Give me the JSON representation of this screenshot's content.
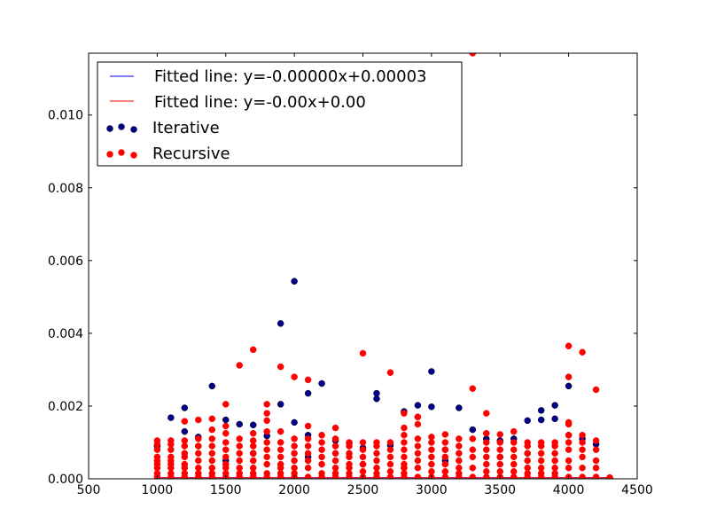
{
  "chart_data": {
    "type": "scatter",
    "xlim": [
      500,
      4500
    ],
    "ylim": [
      0,
      0.0117
    ],
    "x_ticks": [
      500,
      1000,
      1500,
      2000,
      2500,
      3000,
      3500,
      4000,
      4500
    ],
    "y_ticks": [
      0.0,
      0.002,
      0.004,
      0.006,
      0.008,
      0.01
    ],
    "x_tick_labels": [
      "500",
      "1000",
      "1500",
      "2000",
      "2500",
      "3000",
      "3500",
      "4000",
      "4500"
    ],
    "y_tick_labels": [
      "0.000",
      "0.002",
      "0.004",
      "0.006",
      "0.008",
      "0.010"
    ],
    "grid": false,
    "legend_position": "top-left",
    "legend": [
      {
        "label": "Fitted line: y=-0.00000x+0.00003",
        "kind": "line",
        "color": "#0000ff"
      },
      {
        "label": "Fitted line: y=-0.00x+0.00",
        "kind": "line",
        "color": "#ff0000"
      },
      {
        "label": "Iterative",
        "kind": "marker",
        "color": "#00008b"
      },
      {
        "label": "Recursive",
        "kind": "marker",
        "color": "#ff0000"
      }
    ],
    "lines": [
      {
        "name": "Fitted line: y=-0.00000x+0.00003",
        "color": "#0000ff",
        "x": [
          1000,
          4300
        ],
        "y": [
          3e-05,
          3e-05
        ]
      },
      {
        "name": "Fitted line: y=-0.00x+0.00",
        "color": "#ff0000",
        "x": [
          1000,
          4300
        ],
        "y": [
          3e-05,
          3e-05
        ]
      }
    ],
    "series": [
      {
        "name": "Iterative",
        "color": "#00008b",
        "x": [
          1100,
          1200,
          1200,
          1300,
          1400,
          1500,
          1600,
          1700,
          1800,
          1900,
          1900,
          2000,
          2000,
          2100,
          2100,
          2200,
          2300,
          2400,
          2500,
          2600,
          2600,
          2700,
          2800,
          2900,
          2900,
          3000,
          3000,
          3100,
          3200,
          3300,
          3400,
          3500,
          3600,
          3700,
          3800,
          3800,
          3900,
          3900,
          4000,
          4100,
          4200,
          1000,
          1300,
          1500,
          1700,
          2100,
          2500,
          2800,
          3100,
          3500,
          3700,
          4000,
          4300
        ],
        "y": [
          0.00168,
          0.00195,
          0.0013,
          0.00115,
          0.00255,
          0.00162,
          0.0015,
          0.00148,
          0.00118,
          0.00427,
          0.00205,
          0.00543,
          0.00155,
          0.00235,
          0.0012,
          0.00262,
          0.00105,
          0.00098,
          0.00085,
          0.00235,
          0.0022,
          0.00092,
          0.00185,
          0.0017,
          0.00202,
          0.00295,
          0.00198,
          0.0008,
          0.00195,
          0.00135,
          0.0011,
          0.00105,
          0.0011,
          0.0016,
          0.00188,
          0.00162,
          0.00202,
          0.00165,
          0.00255,
          0.0011,
          0.00095,
          0.0009,
          0.0009,
          0.0005,
          0.0007,
          0.0006,
          0.0004,
          0.0003,
          0.0005,
          0.0006,
          0.0007,
          0.0012,
          3e-05
        ]
      },
      {
        "name": "Recursive",
        "color": "#ff0000",
        "x": [
          1000,
          1000,
          1000,
          1000,
          1000,
          1000,
          1000,
          1000,
          1000,
          1100,
          1100,
          1100,
          1100,
          1100,
          1100,
          1100,
          1100,
          1100,
          1200,
          1200,
          1200,
          1200,
          1200,
          1200,
          1200,
          1200,
          1200,
          1300,
          1300,
          1300,
          1300,
          1300,
          1300,
          1300,
          1300,
          1400,
          1400,
          1400,
          1400,
          1400,
          1400,
          1400,
          1400,
          1400,
          1500,
          1500,
          1500,
          1500,
          1500,
          1500,
          1500,
          1500,
          1500,
          1500,
          1600,
          1600,
          1600,
          1600,
          1600,
          1600,
          1600,
          1600,
          1700,
          1700,
          1700,
          1700,
          1700,
          1700,
          1700,
          1700,
          1700,
          1800,
          1800,
          1800,
          1800,
          1800,
          1800,
          1800,
          1800,
          1800,
          1800,
          1900,
          1900,
          1900,
          1900,
          1900,
          1900,
          1900,
          1900,
          1900,
          2000,
          2000,
          2000,
          2000,
          2000,
          2000,
          2000,
          2000,
          2100,
          2100,
          2100,
          2100,
          2100,
          2100,
          2100,
          2100,
          2200,
          2200,
          2200,
          2200,
          2200,
          2200,
          2200,
          2300,
          2300,
          2300,
          2300,
          2300,
          2300,
          2300,
          2300,
          2400,
          2400,
          2400,
          2400,
          2400,
          2400,
          2400,
          2400,
          2500,
          2500,
          2500,
          2500,
          2500,
          2500,
          2500,
          2600,
          2600,
          2600,
          2600,
          2600,
          2600,
          2600,
          2700,
          2700,
          2700,
          2700,
          2700,
          2700,
          2700,
          2800,
          2800,
          2800,
          2800,
          2800,
          2800,
          2800,
          2800,
          2800,
          2800,
          2900,
          2900,
          2900,
          2900,
          2900,
          2900,
          2900,
          2900,
          3000,
          3000,
          3000,
          3000,
          3000,
          3000,
          3000,
          3100,
          3100,
          3100,
          3100,
          3100,
          3100,
          3100,
          3200,
          3200,
          3200,
          3200,
          3200,
          3200,
          3200,
          3300,
          3300,
          3300,
          3300,
          3300,
          3300,
          3300,
          3400,
          3400,
          3400,
          3400,
          3400,
          3400,
          3400,
          3400,
          3500,
          3500,
          3500,
          3500,
          3500,
          3500,
          3500,
          3600,
          3600,
          3600,
          3600,
          3600,
          3600,
          3600,
          3700,
          3700,
          3700,
          3700,
          3700,
          3700,
          3700,
          3800,
          3800,
          3800,
          3800,
          3800,
          3800,
          3800,
          3900,
          3900,
          3900,
          3900,
          3900,
          3900,
          3900,
          4000,
          4000,
          4000,
          4000,
          4000,
          4000,
          4000,
          4000,
          4000,
          4000,
          4100,
          4100,
          4100,
          4100,
          4100,
          4100,
          4100,
          4200,
          4200,
          4200,
          4200,
          4200,
          4200,
          4300
        ],
        "y": [
          0.00105,
          0.00095,
          0.0008,
          0.0006,
          0.0005,
          0.0004,
          0.0003,
          0.00015,
          5e-05,
          0.00105,
          0.00095,
          0.0008,
          0.0006,
          0.0005,
          0.0004,
          0.0003,
          0.00015,
          5e-05,
          0.00158,
          0.00105,
          0.0009,
          0.0007,
          0.0006,
          0.0004,
          0.0003,
          0.00015,
          5e-05,
          0.00162,
          0.0011,
          0.0009,
          0.0007,
          0.0005,
          0.0003,
          0.00015,
          5e-05,
          0.00165,
          0.00135,
          0.0011,
          0.0009,
          0.0007,
          0.0005,
          0.0003,
          0.00015,
          5e-05,
          0.00205,
          0.00145,
          0.00125,
          0.001,
          0.0008,
          0.0006,
          0.0004,
          0.0003,
          0.00015,
          5e-05,
          0.00312,
          0.0011,
          0.0009,
          0.0007,
          0.0005,
          0.0003,
          0.00015,
          5e-05,
          0.00355,
          0.00125,
          0.00105,
          0.0009,
          0.0007,
          0.0005,
          0.0003,
          0.00015,
          5e-05,
          0.00205,
          0.0018,
          0.0016,
          0.0013,
          0.001,
          0.0008,
          0.0006,
          0.0004,
          0.00015,
          5e-05,
          0.00308,
          0.0013,
          0.001,
          0.0008,
          0.0006,
          0.0004,
          0.0003,
          0.00015,
          5e-05,
          0.0028,
          0.0011,
          0.0009,
          0.0007,
          0.0005,
          0.0003,
          0.00015,
          5e-05,
          0.00272,
          0.00145,
          0.0011,
          0.0009,
          0.0007,
          0.0005,
          0.0003,
          5e-05,
          0.0012,
          0.001,
          0.0008,
          0.0006,
          0.0004,
          0.00015,
          5e-05,
          0.0014,
          0.0011,
          0.0009,
          0.0007,
          0.0005,
          0.0003,
          0.00015,
          5e-05,
          0.001,
          0.0009,
          0.0007,
          0.0006,
          0.0004,
          0.0003,
          0.00015,
          5e-05,
          0.00345,
          0.001,
          0.0008,
          0.0006,
          0.0004,
          0.0002,
          5e-05,
          0.001,
          0.0009,
          0.0007,
          0.0005,
          0.0003,
          0.00015,
          5e-05,
          0.00292,
          0.001,
          0.0008,
          0.0006,
          0.0004,
          0.0002,
          5e-05,
          0.0018,
          0.0014,
          0.0012,
          0.001,
          0.0008,
          0.0006,
          0.0004,
          0.0003,
          0.00015,
          5e-05,
          0.0017,
          0.0015,
          0.0011,
          0.0009,
          0.0007,
          0.0005,
          0.0003,
          5e-05,
          0.00115,
          0.001,
          0.0008,
          0.0006,
          0.0004,
          0.0002,
          5e-05,
          0.00122,
          0.001,
          0.0008,
          0.0006,
          0.0004,
          0.0002,
          5e-05,
          0.0011,
          0.0009,
          0.0007,
          0.0005,
          0.0003,
          0.00015,
          5e-05,
          0.0117,
          0.00248,
          0.0011,
          0.0008,
          0.0006,
          0.0003,
          5e-05,
          0.0018,
          0.00125,
          0.001,
          0.0008,
          0.0006,
          0.0004,
          0.0002,
          5e-05,
          0.00122,
          0.001,
          0.0008,
          0.0006,
          0.0004,
          0.0002,
          5e-05,
          0.0013,
          0.001,
          0.0008,
          0.0006,
          0.0004,
          0.0002,
          5e-05,
          0.001,
          0.0009,
          0.0007,
          0.0005,
          0.0003,
          0.00015,
          5e-05,
          0.001,
          0.0009,
          0.0007,
          0.0005,
          0.0003,
          0.00015,
          5e-05,
          0.001,
          0.0009,
          0.0007,
          0.0005,
          0.0003,
          0.00015,
          5e-05,
          0.00365,
          0.0028,
          0.00155,
          0.0015,
          0.0012,
          0.001,
          0.0008,
          0.0005,
          0.0003,
          5e-05,
          0.00348,
          0.0012,
          0.001,
          0.0008,
          0.0006,
          0.0003,
          5e-05,
          0.00245,
          0.00105,
          0.0008,
          0.0005,
          0.0003,
          5e-05,
          3e-05
        ]
      }
    ]
  }
}
